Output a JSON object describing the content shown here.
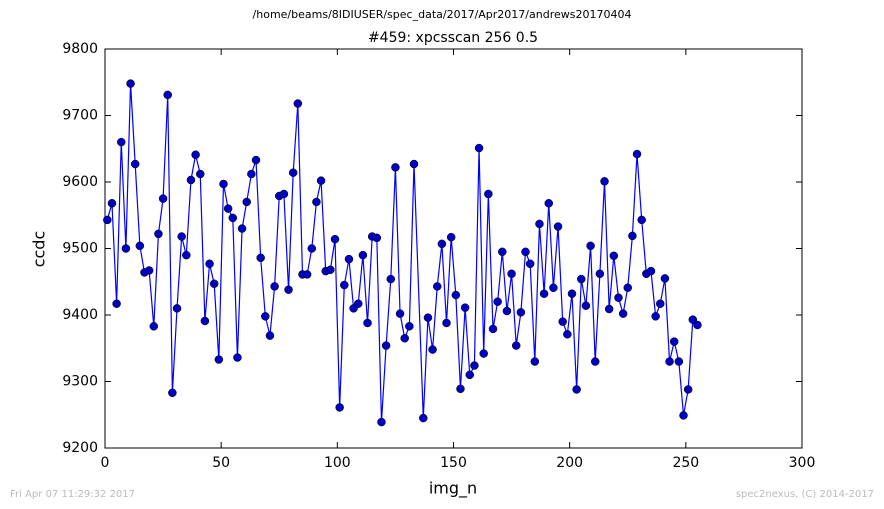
{
  "chart_data": {
    "type": "line",
    "suptitle": "/home/beams/8IDIUSER/spec_data/2017/Apr2017/andrews20170404",
    "title": "#459: xpcsscan 256 0.5",
    "xlabel": "img_n",
    "ylabel": "ccdc",
    "footer_left": "Fri Apr 07 11:29:32 2017",
    "footer_right": "spec2nexus, (C) 2014-2017",
    "color": "#0000ff",
    "marker_color": "#0000bf",
    "xlim": [
      0,
      300
    ],
    "xticks": [
      0,
      50,
      100,
      150,
      200,
      250,
      300
    ],
    "ylim": [
      9200,
      9800
    ],
    "yticks": [
      9200,
      9300,
      9400,
      9500,
      9600,
      9700,
      9800
    ],
    "grid": false,
    "x": [
      1,
      3,
      5,
      7,
      9,
      11,
      13,
      15,
      17,
      19,
      21,
      23,
      25,
      27,
      29,
      31,
      33,
      35,
      37,
      39,
      41,
      43,
      45,
      47,
      49,
      51,
      53,
      55,
      57,
      59,
      61,
      63,
      65,
      67,
      69,
      71,
      73,
      75,
      77,
      79,
      81,
      83,
      85,
      87,
      89,
      91,
      93,
      95,
      97,
      99,
      101,
      103,
      105,
      107,
      109,
      111,
      113,
      115,
      117,
      119,
      121,
      123,
      125,
      127,
      129,
      131,
      133,
      137,
      139,
      141,
      143,
      145,
      147,
      149,
      151,
      153,
      155,
      157,
      159,
      161,
      163,
      165,
      167,
      169,
      171,
      173,
      175,
      177,
      179,
      181,
      183,
      185,
      187,
      189,
      191,
      193,
      195,
      197,
      199,
      201,
      203,
      205,
      207,
      209,
      211,
      213,
      215,
      217,
      219,
      221,
      223,
      225,
      227,
      229,
      231,
      233,
      235,
      237,
      239,
      241,
      243,
      245,
      247,
      249,
      251,
      253,
      255
    ],
    "values": [
      9543,
      9568,
      9417,
      9660,
      9500,
      9748,
      9627,
      9504,
      9464,
      9467,
      9383,
      9522,
      9575,
      9731,
      9283,
      9410,
      9518,
      9490,
      9603,
      9641,
      9612,
      9391,
      9477,
      9447,
      9333,
      9597,
      9560,
      9546,
      9336,
      9530,
      9570,
      9612,
      9633,
      9486,
      9398,
      9369,
      9443,
      9579,
      9582,
      9438,
      9614,
      9718,
      9461,
      9461,
      9500,
      9570,
      9602,
      9466,
      9468,
      9514,
      9261,
      9445,
      9484,
      9410,
      9417,
      9490,
      9388,
      9518,
      9516,
      9239,
      9354,
      9454,
      9622,
      9402,
      9365,
      9383,
      9627,
      9245,
      9396,
      9348,
      9443,
      9507,
      9388,
      9517,
      9430,
      9289,
      9411,
      9310,
      9324,
      9651,
      9342,
      9582,
      9379,
      9420,
      9495,
      9406,
      9462,
      9354,
      9404,
      9495,
      9477,
      9330,
      9537,
      9432,
      9568,
      9441,
      9533,
      9390,
      9371,
      9432,
      9288,
      9454,
      9414,
      9504,
      9330,
      9462,
      9601,
      9409,
      9489,
      9426,
      9402,
      9441,
      9519,
      9642,
      9543,
      9462,
      9466,
      9398,
      9417,
      9455,
      9330,
      9360,
      9330,
      9249,
      9288,
      9393,
      9385
    ]
  }
}
